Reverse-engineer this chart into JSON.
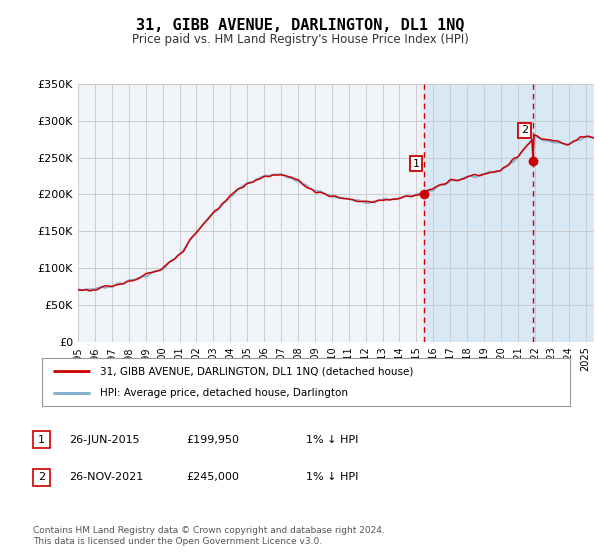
{
  "title": "31, GIBB AVENUE, DARLINGTON, DL1 1NQ",
  "subtitle": "Price paid vs. HM Land Registry's House Price Index (HPI)",
  "ylabel_ticks": [
    "£0",
    "£50K",
    "£100K",
    "£150K",
    "£200K",
    "£250K",
    "£300K",
    "£350K"
  ],
  "ylim": [
    0,
    350000
  ],
  "xlim_start": 1995.0,
  "xlim_end": 2025.5,
  "sale1_date": 2015.48,
  "sale1_price": 199950,
  "sale1_label": "1",
  "sale2_date": 2021.9,
  "sale2_price": 245000,
  "sale2_label": "2",
  "legend_line1": "31, GIBB AVENUE, DARLINGTON, DL1 1NQ (detached house)",
  "legend_line2": "HPI: Average price, detached house, Darlington",
  "footer": "Contains HM Land Registry data © Crown copyright and database right 2024.\nThis data is licensed under the Open Government Licence v3.0.",
  "line_color_red": "#cc0000",
  "line_color_blue": "#7aaacc",
  "bg_plot_left": "#f0f4f8",
  "bg_plot_right": "#d8e8f4",
  "bg_figure": "#ffffff",
  "grid_color": "#cccccc",
  "dashed_color": "#cc0000",
  "marker_box_color": "#cc0000",
  "hpi_knots_x": [
    1995,
    1996,
    1997,
    1998,
    1999,
    2000,
    2001,
    2002,
    2003,
    2004,
    2005,
    2006,
    2007,
    2008,
    2009,
    2010,
    2011,
    2012,
    2013,
    2014,
    2015,
    2016,
    2017,
    2018,
    2019,
    2020,
    2021,
    2022,
    2023,
    2024,
    2025
  ],
  "hpi_knots_y": [
    70000,
    72000,
    76000,
    82000,
    90000,
    98000,
    118000,
    148000,
    175000,
    198000,
    215000,
    225000,
    228000,
    218000,
    205000,
    198000,
    193000,
    190000,
    192000,
    195000,
    200000,
    207000,
    218000,
    224000,
    228000,
    232000,
    252000,
    278000,
    272000,
    268000,
    278000
  ],
  "noise_seed": 7,
  "noise_scale_hpi": 2500,
  "noise_scale_red": 3000
}
